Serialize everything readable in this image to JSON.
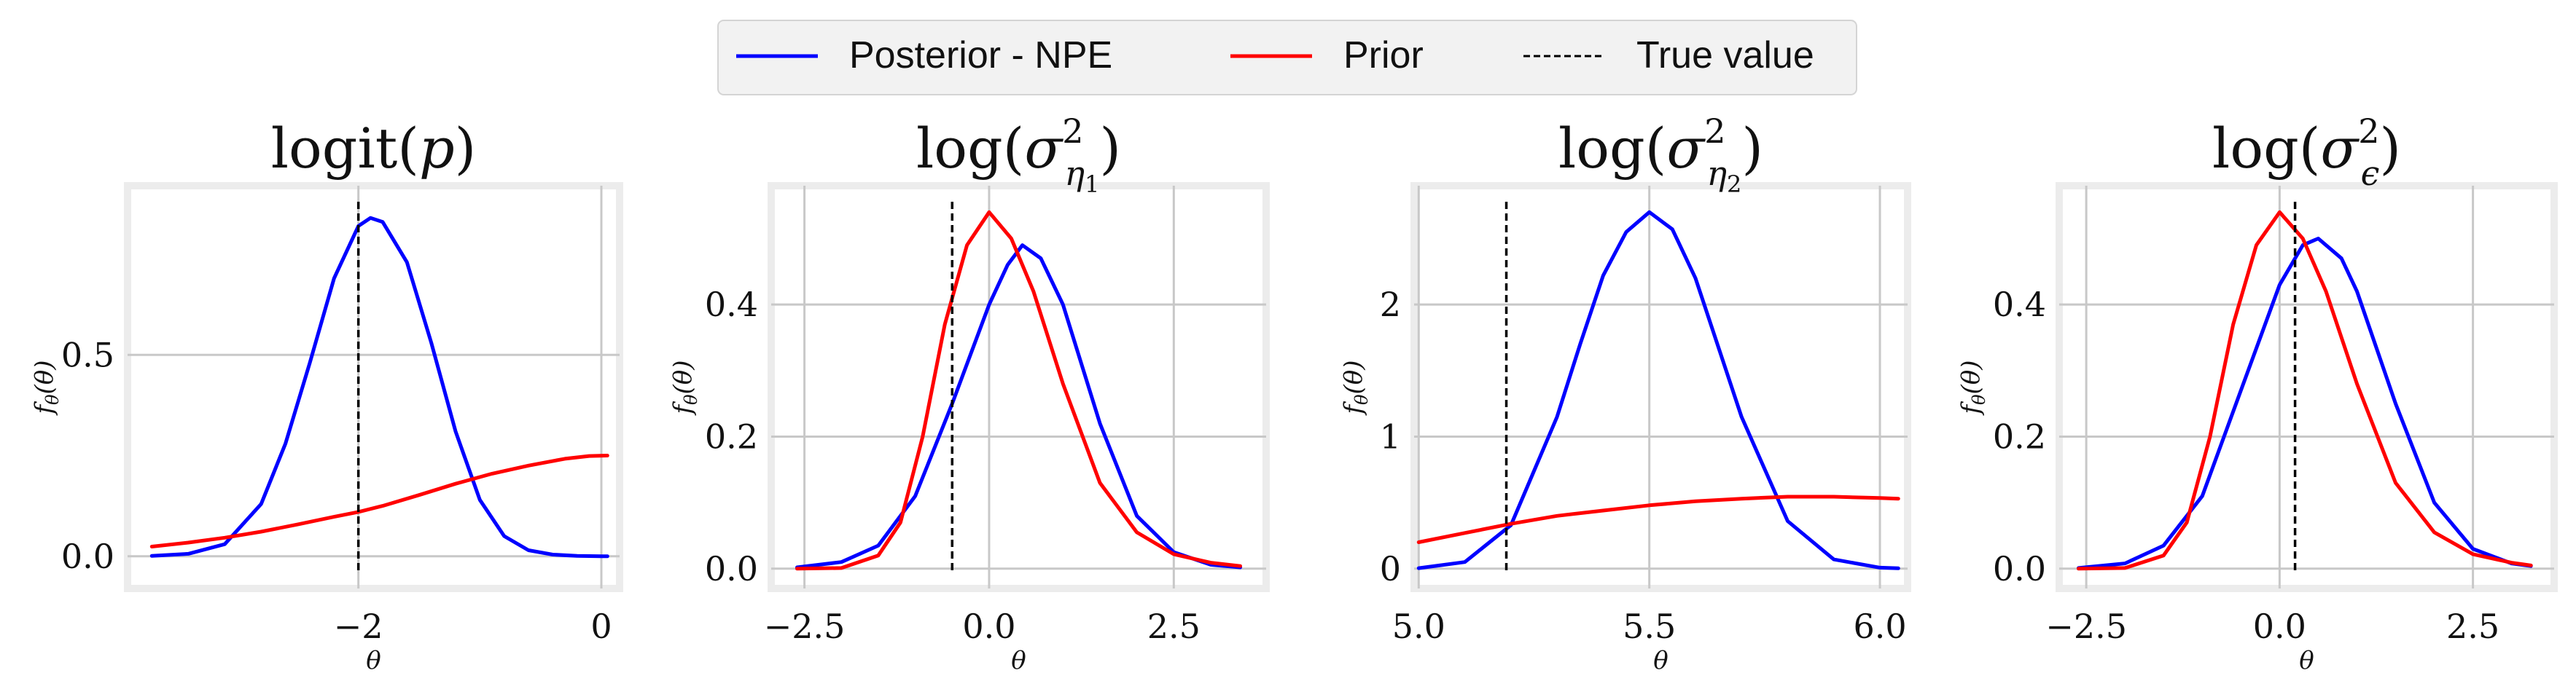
{
  "legend": {
    "placement": "top-center",
    "entries": [
      {
        "label": "Posterior - NPE",
        "color": "#0000ff",
        "style": "solid"
      },
      {
        "label": "Prior",
        "color": "#ff0000",
        "style": "solid"
      },
      {
        "label": "True value",
        "color": "#000000",
        "style": "dashed"
      }
    ]
  },
  "colors": {
    "posterior": "#0000ff",
    "prior": "#ff0000",
    "true_value": "#000000",
    "grid": "#c8c8c8",
    "frame": "#ececec"
  },
  "chart_data": [
    {
      "type": "line",
      "title": "logit(p)",
      "xlabel": "θ",
      "ylabel": "fθ(θ)",
      "xlim": [
        -3.9,
        0.15
      ],
      "ylim": [
        -0.08,
        0.92
      ],
      "grid": true,
      "xticks": [
        {
          "value": -2,
          "label": "−2"
        },
        {
          "value": 0,
          "label": "0"
        }
      ],
      "yticks": [
        {
          "value": 0,
          "label": "0.0"
        },
        {
          "value": 0.5,
          "label": "0.5"
        }
      ],
      "true_value": -2.0,
      "series": [
        {
          "name": "Posterior - NPE",
          "x": [
            -3.7,
            -3.4,
            -3.1,
            -2.8,
            -2.6,
            -2.4,
            -2.2,
            -2.0,
            -1.9,
            -1.8,
            -1.6,
            -1.4,
            -1.2,
            -1.0,
            -0.8,
            -0.6,
            -0.4,
            -0.2,
            0.0,
            0.05
          ],
          "y": [
            0.001,
            0.006,
            0.03,
            0.13,
            0.28,
            0.48,
            0.69,
            0.82,
            0.84,
            0.83,
            0.73,
            0.53,
            0.31,
            0.14,
            0.05,
            0.015,
            0.004,
            0.001,
            0.0,
            0.0
          ]
        },
        {
          "name": "Prior",
          "x": [
            -3.7,
            -3.4,
            -3.1,
            -2.8,
            -2.5,
            -2.2,
            -2.0,
            -1.8,
            -1.5,
            -1.2,
            -0.9,
            -0.6,
            -0.3,
            -0.1,
            0.05
          ],
          "y": [
            0.024,
            0.034,
            0.046,
            0.061,
            0.079,
            0.098,
            0.11,
            0.125,
            0.152,
            0.18,
            0.205,
            0.225,
            0.242,
            0.249,
            0.25
          ]
        }
      ]
    },
    {
      "type": "line",
      "title": "log(σ²η1)",
      "xlabel": "θ",
      "ylabel": "fθ(θ)",
      "xlim": [
        -2.95,
        3.75
      ],
      "ylim": [
        -0.03,
        0.58
      ],
      "grid": true,
      "xticks": [
        {
          "value": -2.5,
          "label": "−2.5"
        },
        {
          "value": 0,
          "label": "0.0"
        },
        {
          "value": 2.5,
          "label": "2.5"
        }
      ],
      "yticks": [
        {
          "value": 0,
          "label": "0.0"
        },
        {
          "value": 0.2,
          "label": "0.2"
        },
        {
          "value": 0.4,
          "label": "0.4"
        }
      ],
      "true_value": -0.5,
      "series": [
        {
          "name": "Posterior - NPE",
          "x": [
            -2.6,
            -2.0,
            -1.5,
            -1.0,
            -0.5,
            0.0,
            0.25,
            0.45,
            0.7,
            1.0,
            1.5,
            2.0,
            2.5,
            3.0,
            3.4
          ],
          "y": [
            0.002,
            0.01,
            0.035,
            0.11,
            0.25,
            0.4,
            0.46,
            0.49,
            0.47,
            0.4,
            0.22,
            0.08,
            0.025,
            0.006,
            0.002
          ]
        },
        {
          "name": "Prior",
          "x": [
            -2.6,
            -2.0,
            -1.5,
            -1.2,
            -0.9,
            -0.6,
            -0.3,
            0.0,
            0.3,
            0.6,
            1.0,
            1.5,
            2.0,
            2.5,
            3.0,
            3.4
          ],
          "y": [
            0.0,
            0.001,
            0.02,
            0.07,
            0.2,
            0.37,
            0.49,
            0.54,
            0.5,
            0.42,
            0.28,
            0.13,
            0.055,
            0.022,
            0.009,
            0.004
          ]
        }
      ]
    },
    {
      "type": "line",
      "title": "log(σ²η2)",
      "xlabel": "θ",
      "ylabel": "fθ(θ)",
      "xlim": [
        4.99,
        6.06
      ],
      "ylim": [
        -0.15,
        2.9
      ],
      "grid": true,
      "xticks": [
        {
          "value": 5.0,
          "label": "5.0"
        },
        {
          "value": 5.5,
          "label": "5.5"
        },
        {
          "value": 6.0,
          "label": "6.0"
        }
      ],
      "yticks": [
        {
          "value": 0,
          "label": "0"
        },
        {
          "value": 1,
          "label": "1"
        },
        {
          "value": 2,
          "label": "2"
        }
      ],
      "true_value": 5.19,
      "series": [
        {
          "name": "Posterior - NPE",
          "x": [
            5.0,
            5.1,
            5.2,
            5.3,
            5.35,
            5.4,
            5.45,
            5.5,
            5.55,
            5.6,
            5.7,
            5.8,
            5.9,
            6.0,
            6.04
          ],
          "y": [
            0.004,
            0.05,
            0.33,
            1.15,
            1.7,
            2.22,
            2.55,
            2.7,
            2.57,
            2.2,
            1.15,
            0.36,
            0.07,
            0.008,
            0.003
          ]
        },
        {
          "name": "Prior",
          "x": [
            5.0,
            5.1,
            5.2,
            5.3,
            5.4,
            5.5,
            5.6,
            5.7,
            5.8,
            5.9,
            6.0,
            6.04
          ],
          "y": [
            0.2,
            0.27,
            0.34,
            0.4,
            0.44,
            0.48,
            0.51,
            0.53,
            0.545,
            0.545,
            0.535,
            0.53
          ]
        }
      ]
    },
    {
      "type": "line",
      "title": "log(σ²ϵ)",
      "xlabel": "θ",
      "ylabel": "fθ(θ)",
      "xlim": [
        -2.85,
        3.55
      ],
      "ylim": [
        -0.03,
        0.58
      ],
      "grid": true,
      "xticks": [
        {
          "value": -2.5,
          "label": "−2.5"
        },
        {
          "value": 0,
          "label": "0.0"
        },
        {
          "value": 2.5,
          "label": "2.5"
        }
      ],
      "yticks": [
        {
          "value": 0,
          "label": "0.0"
        },
        {
          "value": 0.2,
          "label": "0.2"
        },
        {
          "value": 0.4,
          "label": "0.4"
        }
      ],
      "true_value": 0.2,
      "series": [
        {
          "name": "Posterior - NPE",
          "x": [
            -2.6,
            -2.0,
            -1.5,
            -1.0,
            -0.5,
            0.0,
            0.3,
            0.5,
            0.8,
            1.0,
            1.5,
            2.0,
            2.5,
            3.0,
            3.25
          ],
          "y": [
            0.001,
            0.008,
            0.035,
            0.11,
            0.27,
            0.43,
            0.49,
            0.5,
            0.47,
            0.42,
            0.25,
            0.1,
            0.03,
            0.008,
            0.004
          ]
        },
        {
          "name": "Prior",
          "x": [
            -2.6,
            -2.0,
            -1.5,
            -1.2,
            -0.9,
            -0.6,
            -0.3,
            0.0,
            0.3,
            0.6,
            1.0,
            1.5,
            2.0,
            2.5,
            3.0,
            3.25
          ],
          "y": [
            0.0,
            0.001,
            0.02,
            0.07,
            0.2,
            0.37,
            0.49,
            0.54,
            0.5,
            0.42,
            0.28,
            0.13,
            0.055,
            0.022,
            0.009,
            0.005
          ]
        }
      ]
    }
  ]
}
